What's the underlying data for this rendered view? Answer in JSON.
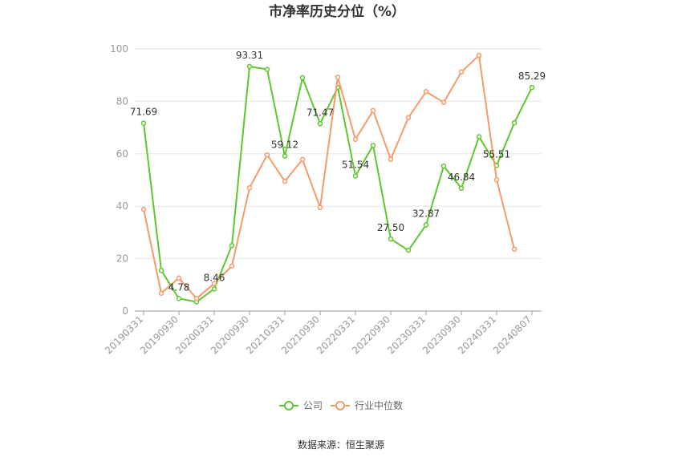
{
  "chart_data": {
    "type": "line",
    "title": "市净率历史分位（%）",
    "source_label": "数据来源：恒生聚源",
    "ylim": [
      0,
      100
    ],
    "y_ticks": [
      0,
      20,
      40,
      60,
      80,
      100
    ],
    "x_tick_labels": [
      "20190331",
      "20190930",
      "20200331",
      "20200930",
      "20210331",
      "20210930",
      "20220331",
      "20220930",
      "20230331",
      "20230930",
      "20240331",
      "20240807"
    ],
    "grid": true,
    "legend_position": "bottom",
    "series": [
      {
        "name": "公司",
        "color": "#5ec72e",
        "values": [
          71.69,
          15.5,
          4.78,
          3.5,
          8.46,
          25.0,
          93.31,
          92.2,
          59.12,
          89.0,
          71.47,
          85.3,
          51.54,
          63.2,
          27.5,
          23.2,
          32.87,
          55.3,
          46.84,
          66.5,
          55.51,
          71.8,
          85.29
        ],
        "labels": [
          "71.69",
          "",
          "4.78",
          "",
          "8.46",
          "",
          "93.31",
          "",
          "59.12",
          "",
          "71.47",
          "",
          "51.54",
          "",
          "27.50",
          "",
          "32.87",
          "",
          "46.84",
          "",
          "55.51",
          "",
          "85.29"
        ]
      },
      {
        "name": "行业中位数",
        "color": "#f59a6a",
        "values": [
          38.8,
          6.8,
          12.6,
          4.8,
          10.5,
          17.2,
          47.0,
          59.6,
          49.5,
          57.8,
          39.5,
          89.2,
          65.5,
          76.5,
          57.9,
          73.8,
          83.7,
          79.6,
          91.2,
          97.5,
          50.1,
          23.6,
          null
        ]
      }
    ]
  }
}
